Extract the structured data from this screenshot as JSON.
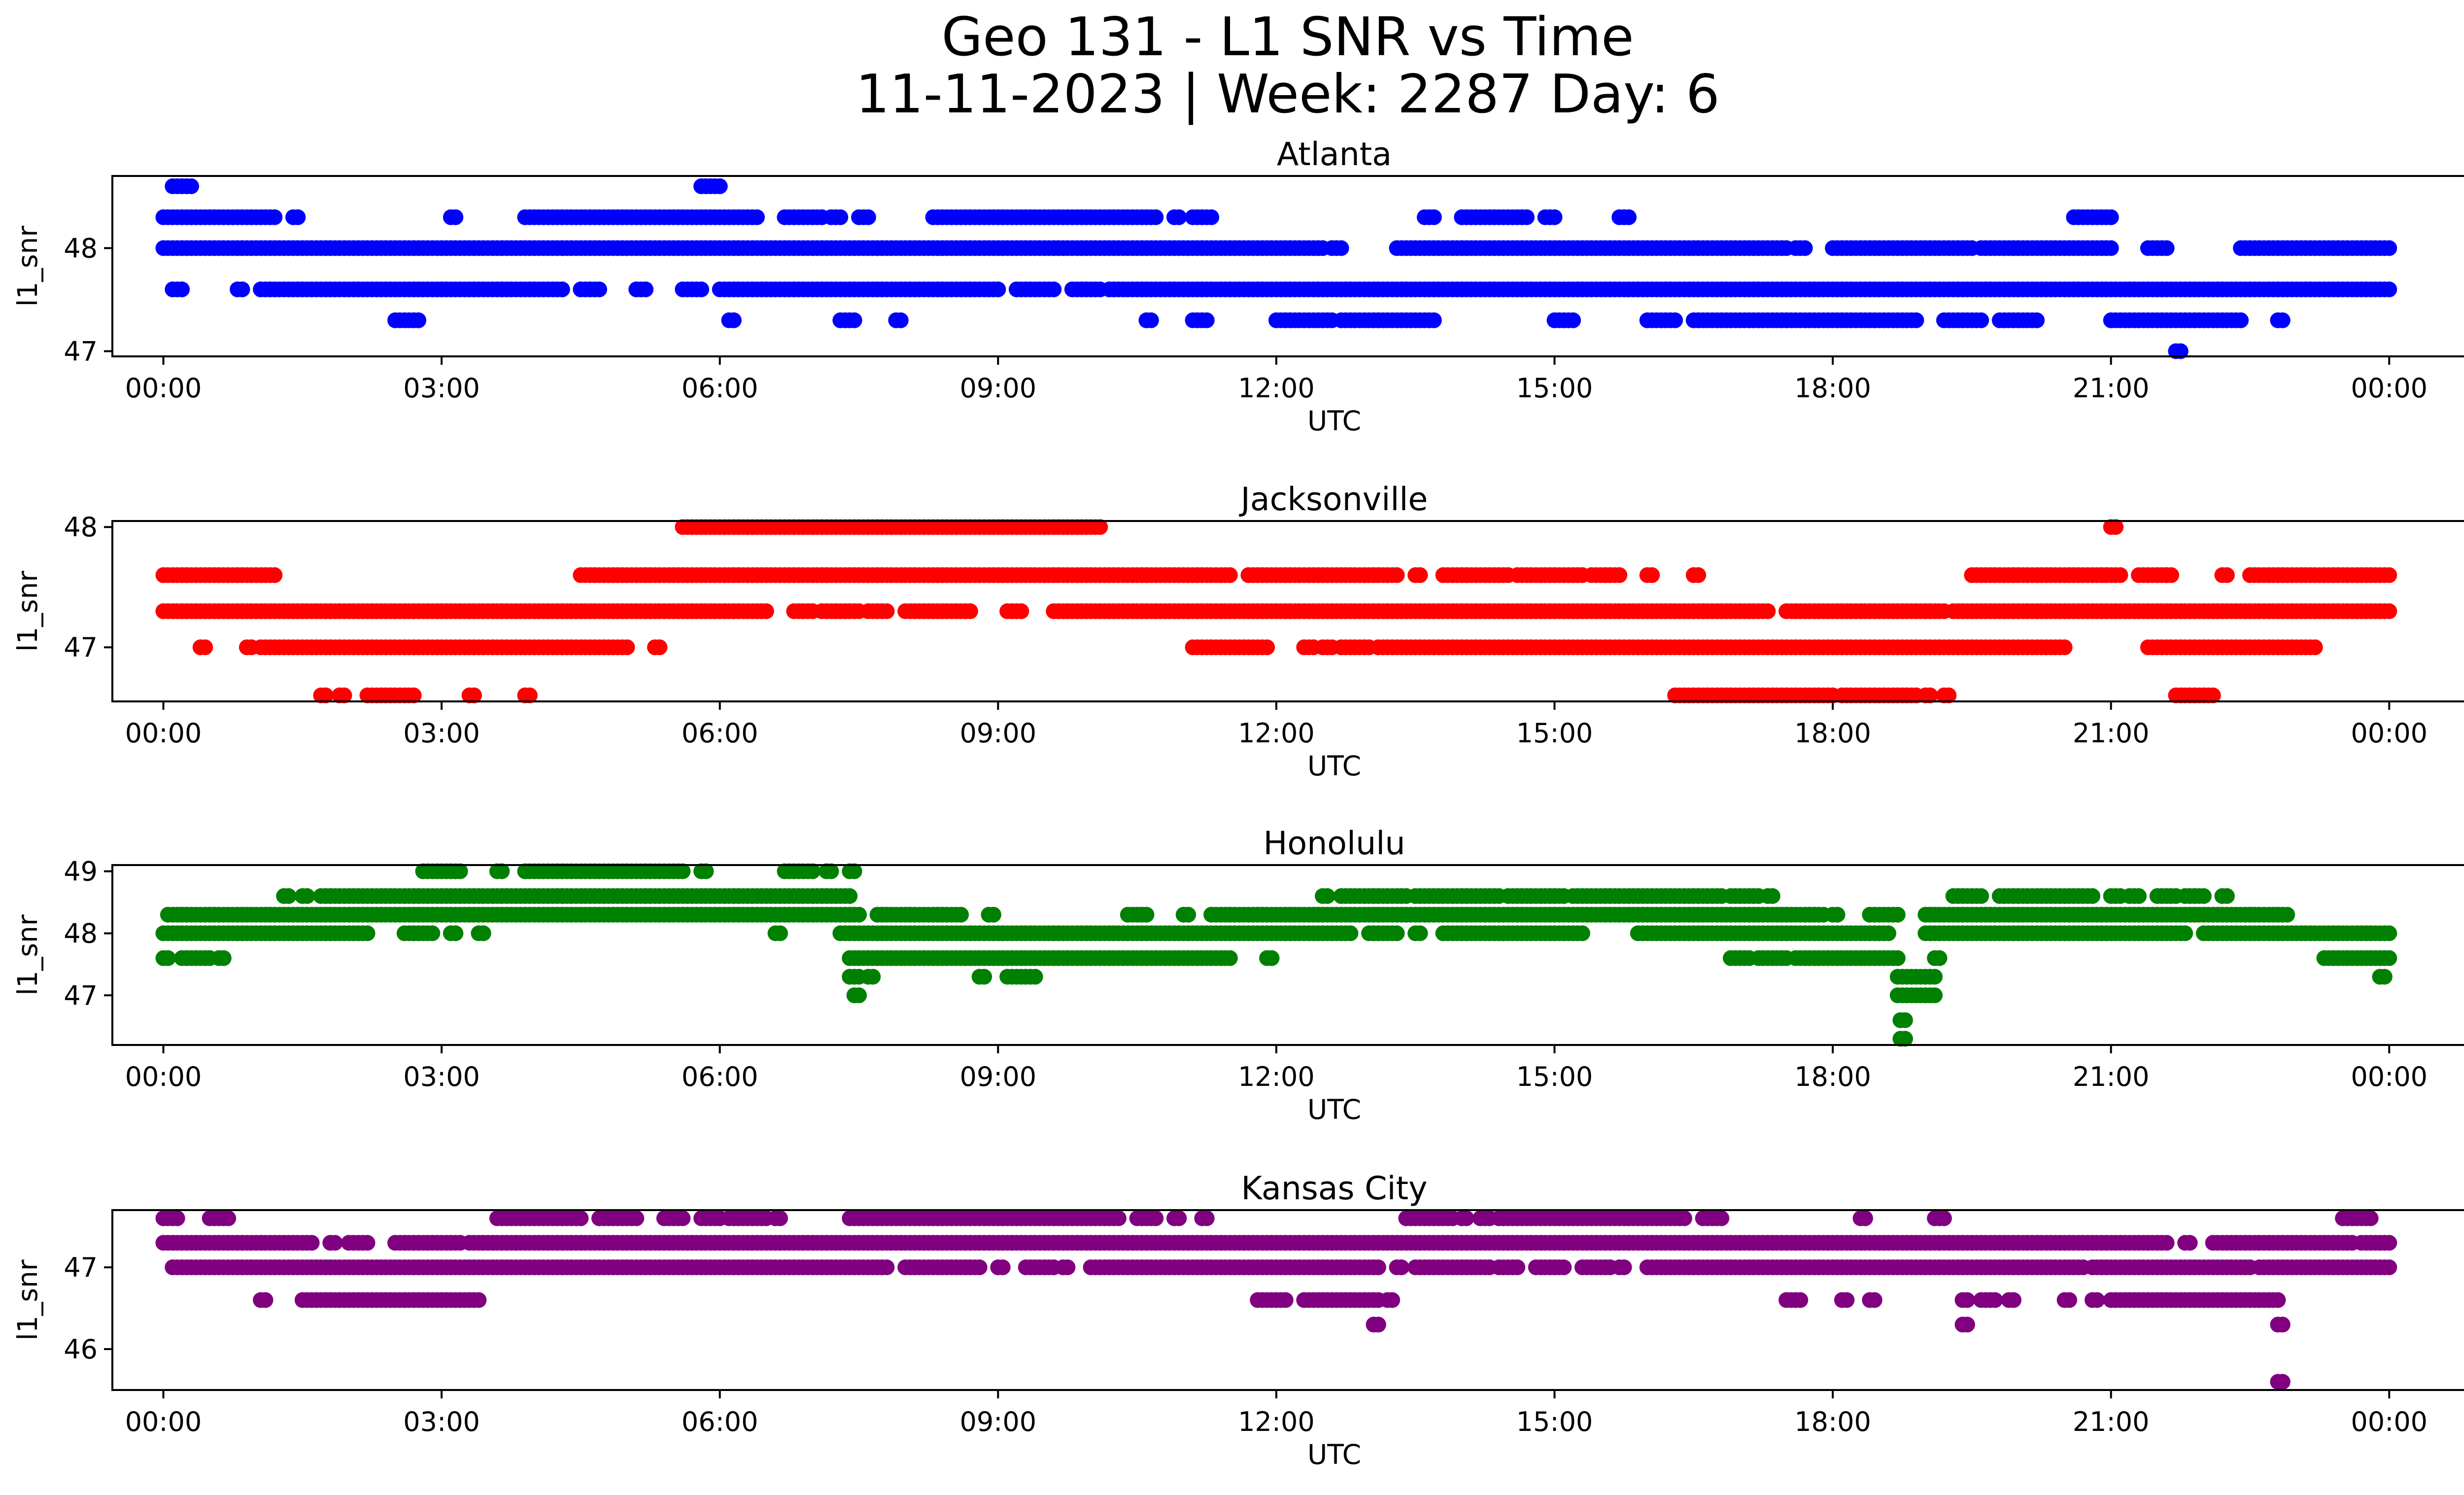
{
  "figure": {
    "title_line1": "Geo 131 - L1 SNR vs Time",
    "title_line2": "11-11-2023 | Week: 2287 Day: 6"
  },
  "chart_data": [
    {
      "type": "scatter",
      "title": "Atlanta",
      "xlabel": "UTC",
      "ylabel": "l1_snr",
      "color": "#0000ff",
      "xlim": [
        -0.55,
        25.8
      ],
      "ylim": [
        46.95,
        48.7
      ],
      "yticks": [
        47,
        48
      ],
      "xticks": [
        "00:00",
        "03:00",
        "06:00",
        "09:00",
        "12:00",
        "15:00",
        "18:00",
        "21:00",
        "00:00"
      ],
      "series": [
        {
          "y": 48.3,
          "segments": [
            [
              0.0,
              1.2
            ],
            [
              1.4,
              1.45
            ],
            [
              3.1,
              3.15
            ],
            [
              3.9,
              6.4
            ],
            [
              6.7,
              7.1
            ],
            [
              7.2,
              7.3
            ],
            [
              7.5,
              7.6
            ],
            [
              8.3,
              10.7
            ],
            [
              10.9,
              10.95
            ],
            [
              11.1,
              11.3
            ],
            [
              13.6,
              13.7
            ],
            [
              14.0,
              14.7
            ],
            [
              14.9,
              15.0
            ],
            [
              15.7,
              15.8
            ],
            [
              20.6,
              21.0
            ]
          ]
        },
        {
          "y": 48.6,
          "segments": [
            [
              0.1,
              0.3
            ],
            [
              5.8,
              6.0
            ]
          ]
        },
        {
          "y": 48.0,
          "segments": [
            [
              0.0,
              12.5
            ],
            [
              12.6,
              12.7
            ],
            [
              13.3,
              17.5
            ],
            [
              17.6,
              17.7
            ],
            [
              18.0,
              19.5
            ],
            [
              19.6,
              21.0
            ],
            [
              21.4,
              21.6
            ],
            [
              22.4,
              24.0
            ]
          ]
        },
        {
          "y": 47.6,
          "segments": [
            [
              0.1,
              0.2
            ],
            [
              0.8,
              0.85
            ],
            [
              1.05,
              4.3
            ],
            [
              4.5,
              4.7
            ],
            [
              5.1,
              5.2
            ],
            [
              5.6,
              5.8
            ],
            [
              6.0,
              9.0
            ],
            [
              9.2,
              9.6
            ],
            [
              9.8,
              10.1
            ],
            [
              10.2,
              24.0
            ]
          ]
        },
        {
          "y": 47.3,
          "segments": [
            [
              2.5,
              2.75
            ],
            [
              6.1,
              6.15
            ],
            [
              7.3,
              7.45
            ],
            [
              7.9,
              7.95
            ],
            [
              10.6,
              10.65
            ],
            [
              11.1,
              11.25
            ],
            [
              12.0,
              12.6
            ],
            [
              12.7,
              13.7
            ],
            [
              15.0,
              15.2
            ],
            [
              16.0,
              16.3
            ],
            [
              16.5,
              18.9
            ],
            [
              19.2,
              19.6
            ],
            [
              19.8,
              20.2
            ],
            [
              21.0,
              22.4
            ],
            [
              22.8,
              22.85
            ]
          ]
        },
        {
          "y": 47.0,
          "segments": [
            [
              21.7,
              21.75
            ]
          ]
        }
      ]
    },
    {
      "type": "scatter",
      "title": "Jacksonville",
      "xlabel": "UTC",
      "ylabel": "l1_snr",
      "color": "#ff0000",
      "xlim": [
        -0.55,
        25.8
      ],
      "ylim": [
        46.55,
        48.05
      ],
      "yticks": [
        47,
        48
      ],
      "xticks": [
        "00:00",
        "03:00",
        "06:00",
        "09:00",
        "12:00",
        "15:00",
        "18:00",
        "21:00",
        "00:00"
      ],
      "series": [
        {
          "y": 48.0,
          "segments": [
            [
              5.6,
              10.1
            ],
            [
              21.0,
              21.05
            ]
          ]
        },
        {
          "y": 47.6,
          "segments": [
            [
              0.0,
              1.2
            ],
            [
              4.5,
              11.5
            ],
            [
              11.7,
              13.3
            ],
            [
              13.5,
              13.55
            ],
            [
              13.8,
              14.5
            ],
            [
              14.6,
              15.3
            ],
            [
              15.4,
              15.7
            ],
            [
              16.0,
              16.05
            ],
            [
              16.5,
              16.55
            ],
            [
              19.5,
              21.1
            ],
            [
              21.3,
              21.6
            ],
            [
              21.6,
              21.65
            ],
            [
              22.2,
              22.25
            ],
            [
              22.5,
              24.0
            ]
          ]
        },
        {
          "y": 47.3,
          "segments": [
            [
              0.0,
              6.5
            ],
            [
              6.8,
              7.0
            ],
            [
              7.1,
              7.5
            ],
            [
              7.6,
              7.8
            ],
            [
              8.0,
              8.7
            ],
            [
              9.1,
              9.25
            ],
            [
              9.6,
              16.6
            ],
            [
              16.6,
              17.3
            ],
            [
              17.5,
              17.65
            ],
            [
              17.7,
              19.2
            ],
            [
              19.3,
              24.0
            ]
          ]
        },
        {
          "y": 47.0,
          "segments": [
            [
              0.4,
              0.45
            ],
            [
              0.9,
              0.95
            ],
            [
              1.05,
              5.0
            ],
            [
              5.3,
              5.35
            ],
            [
              11.1,
              11.9
            ],
            [
              12.3,
              12.4
            ],
            [
              12.5,
              12.6
            ],
            [
              12.7,
              12.75
            ],
            [
              12.8,
              13.0
            ],
            [
              13.1,
              20.5
            ],
            [
              21.4,
              23.2
            ]
          ]
        },
        {
          "y": 46.6,
          "segments": [
            [
              1.7,
              1.75
            ],
            [
              1.9,
              1.95
            ],
            [
              2.2,
              2.7
            ],
            [
              3.3,
              3.35
            ],
            [
              3.9,
              3.95
            ],
            [
              16.3,
              18.0
            ],
            [
              18.1,
              18.9
            ],
            [
              19.0,
              19.05
            ],
            [
              19.2,
              19.25
            ],
            [
              21.7,
              22.1
            ]
          ]
        }
      ]
    },
    {
      "type": "scatter",
      "title": "Honolulu",
      "xlabel": "UTC",
      "ylabel": "l1_snr",
      "color": "#008000",
      "xlim": [
        -0.55,
        25.8
      ],
      "ylim": [
        46.2,
        49.1
      ],
      "yticks": [
        47,
        48,
        49
      ],
      "xticks": [
        "00:00",
        "03:00",
        "06:00",
        "09:00",
        "12:00",
        "15:00",
        "18:00",
        "21:00",
        "00:00"
      ],
      "series": [
        {
          "y": 49.0,
          "segments": [
            [
              2.8,
              3.2
            ],
            [
              3.6,
              3.65
            ],
            [
              3.9,
              5.6
            ],
            [
              5.8,
              5.85
            ],
            [
              6.7,
              7.0
            ],
            [
              7.15,
              7.2
            ],
            [
              7.4,
              7.45
            ]
          ]
        },
        {
          "y": 48.6,
          "segments": [
            [
              1.3,
              1.35
            ],
            [
              1.5,
              1.55
            ],
            [
              1.7,
              7.4
            ],
            [
              12.5,
              12.55
            ],
            [
              12.7,
              13.4
            ],
            [
              13.5,
              14.4
            ],
            [
              14.5,
              15.1
            ],
            [
              15.2,
              16.8
            ],
            [
              16.9,
              17.2
            ],
            [
              17.3,
              17.35
            ],
            [
              19.3,
              19.6
            ],
            [
              19.8,
              20.8
            ],
            [
              21.0,
              21.1
            ],
            [
              21.2,
              21.3
            ],
            [
              21.5,
              21.7
            ],
            [
              21.8,
              22.0
            ],
            [
              22.2,
              22.25
            ]
          ]
        },
        {
          "y": 48.3,
          "segments": [
            [
              0.05,
              7.5
            ],
            [
              7.7,
              8.6
            ],
            [
              8.9,
              8.95
            ],
            [
              10.4,
              10.6
            ],
            [
              11.0,
              11.05
            ],
            [
              11.3,
              17.9
            ],
            [
              18.0,
              18.05
            ],
            [
              18.4,
              18.7
            ],
            [
              19.0,
              22.9
            ]
          ]
        },
        {
          "y": 48.0,
          "segments": [
            [
              0.0,
              2.2
            ],
            [
              2.6,
              2.9
            ],
            [
              3.1,
              3.15
            ],
            [
              3.4,
              3.45
            ],
            [
              6.6,
              6.65
            ],
            [
              7.3,
              12.8
            ],
            [
              13.0,
              13.3
            ],
            [
              13.5,
              13.55
            ],
            [
              13.8,
              15.3
            ],
            [
              15.9,
              18.6
            ],
            [
              19.0,
              21.8
            ],
            [
              22.0,
              24.0
            ]
          ]
        },
        {
          "y": 47.6,
          "segments": [
            [
              0.0,
              0.05
            ],
            [
              0.2,
              0.5
            ],
            [
              0.6,
              0.65
            ],
            [
              7.4,
              11.5
            ],
            [
              11.9,
              11.95
            ],
            [
              16.9,
              17.1
            ],
            [
              17.2,
              17.5
            ],
            [
              17.6,
              18.7
            ],
            [
              19.1,
              19.15
            ],
            [
              23.3,
              24.0
            ]
          ]
        },
        {
          "y": 47.3,
          "segments": [
            [
              7.4,
              7.5
            ],
            [
              7.6,
              7.65
            ],
            [
              8.8,
              8.85
            ],
            [
              9.1,
              9.4
            ],
            [
              18.7,
              19.1
            ],
            [
              23.9,
              23.95
            ]
          ]
        },
        {
          "y": 47.0,
          "segments": [
            [
              7.45,
              7.5
            ],
            [
              18.7,
              19.1
            ]
          ]
        },
        {
          "y": 46.6,
          "segments": [
            [
              18.73,
              18.78
            ]
          ]
        },
        {
          "y": 46.3,
          "segments": [
            [
              18.73,
              18.78
            ]
          ]
        }
      ]
    },
    {
      "type": "scatter",
      "title": "Kansas City",
      "xlabel": "UTC",
      "ylabel": "l1_snr",
      "color": "#800080",
      "xlim": [
        -0.55,
        25.8
      ],
      "ylim": [
        45.5,
        47.7
      ],
      "yticks": [
        46,
        47
      ],
      "xticks": [
        "00:00",
        "03:00",
        "06:00",
        "09:00",
        "12:00",
        "15:00",
        "18:00",
        "21:00",
        "00:00"
      ],
      "series": [
        {
          "y": 47.6,
          "segments": [
            [
              0.0,
              0.15
            ],
            [
              0.5,
              0.7
            ],
            [
              3.6,
              4.5
            ],
            [
              4.7,
              5.1
            ],
            [
              5.4,
              5.6
            ],
            [
              5.8,
              6.0
            ],
            [
              6.1,
              6.5
            ],
            [
              6.6,
              6.65
            ],
            [
              7.4,
              7.45
            ],
            [
              7.5,
              10.3
            ],
            [
              10.5,
              10.7
            ],
            [
              10.9,
              10.95
            ],
            [
              11.2,
              11.25
            ],
            [
              13.4,
              13.9
            ],
            [
              14.0,
              14.05
            ],
            [
              14.2,
              14.3
            ],
            [
              14.4,
              16.4
            ],
            [
              16.6,
              16.8
            ],
            [
              18.3,
              18.35
            ],
            [
              19.1,
              19.2
            ],
            [
              23.5,
              23.8
            ]
          ]
        },
        {
          "y": 47.3,
          "segments": [
            [
              0.0,
              1.6
            ],
            [
              1.8,
              1.85
            ],
            [
              2.0,
              2.2
            ],
            [
              2.5,
              3.2
            ],
            [
              3.3,
              21.6
            ],
            [
              21.8,
              21.85
            ],
            [
              22.1,
              23.6
            ],
            [
              23.7,
              24.0
            ]
          ]
        },
        {
          "y": 47.0,
          "segments": [
            [
              0.1,
              7.8
            ],
            [
              8.0,
              8.8
            ],
            [
              9.0,
              9.05
            ],
            [
              9.3,
              9.6
            ],
            [
              9.7,
              9.75
            ],
            [
              10.0,
              13.1
            ],
            [
              13.3,
              13.35
            ],
            [
              13.5,
              14.3
            ],
            [
              14.4,
              14.6
            ],
            [
              14.8,
              15.1
            ],
            [
              15.3,
              15.6
            ],
            [
              15.7,
              15.75
            ],
            [
              16.0,
              20.7
            ],
            [
              20.8,
              22.5
            ],
            [
              22.6,
              24.0
            ]
          ]
        },
        {
          "y": 46.6,
          "segments": [
            [
              1.05,
              1.1
            ],
            [
              1.5,
              3.4
            ],
            [
              11.8,
              12.1
            ],
            [
              12.3,
              13.1
            ],
            [
              13.2,
              13.25
            ],
            [
              17.5,
              17.65
            ],
            [
              18.1,
              18.15
            ],
            [
              18.4,
              18.45
            ],
            [
              19.4,
              19.45
            ],
            [
              19.6,
              19.75
            ],
            [
              19.9,
              19.95
            ],
            [
              20.5,
              20.55
            ],
            [
              20.8,
              20.85
            ],
            [
              21.0,
              22.8
            ]
          ]
        },
        {
          "y": 46.3,
          "segments": [
            [
              13.05,
              13.1
            ],
            [
              19.4,
              19.45
            ],
            [
              22.8,
              22.85
            ]
          ]
        },
        {
          "y": 45.6,
          "segments": [
            [
              22.8,
              22.85
            ]
          ]
        }
      ]
    }
  ]
}
